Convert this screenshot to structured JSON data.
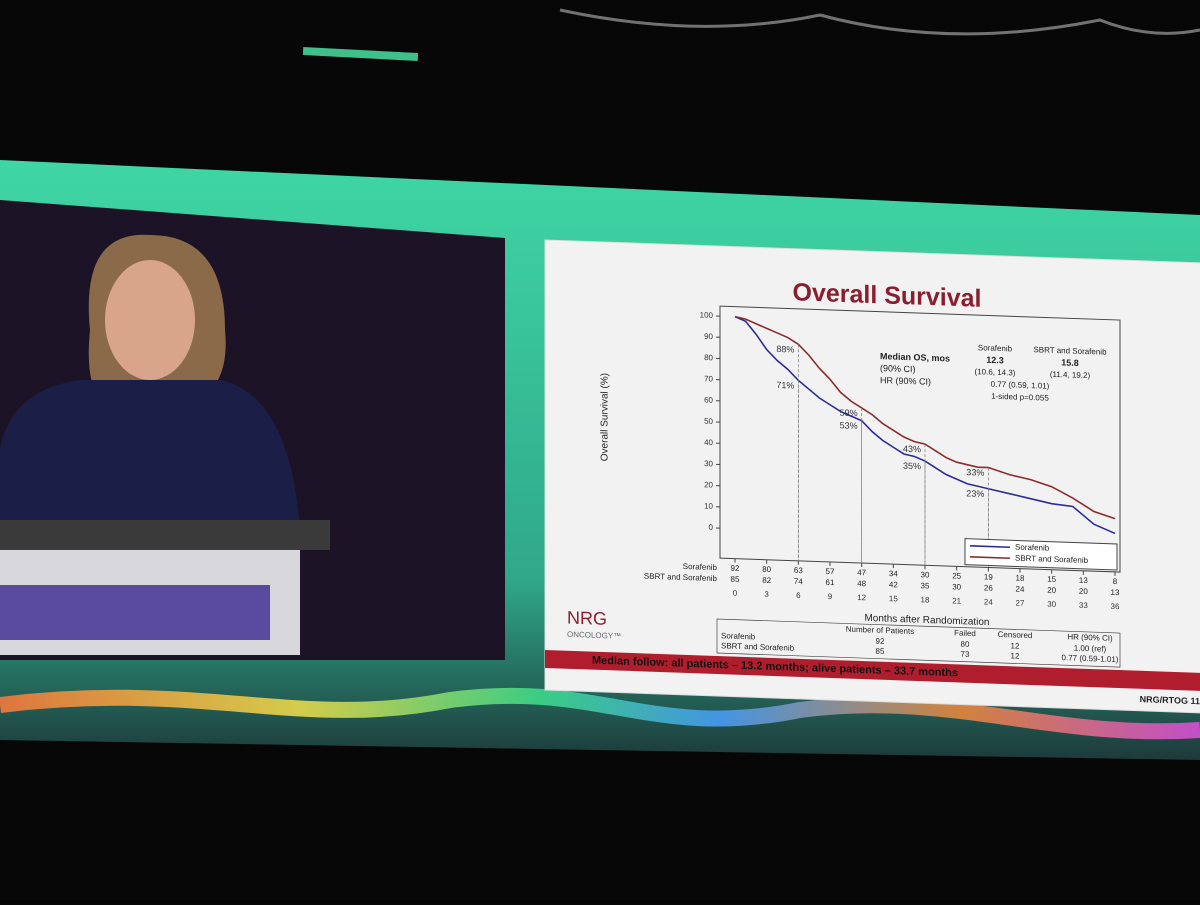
{
  "chart_data": {
    "type": "line",
    "title": "Overall Survival",
    "x_label": "Months after Randomization",
    "y_label": "Overall Survival (%)",
    "xlim": [
      0,
      36
    ],
    "xticks": [
      0,
      3,
      6,
      9,
      12,
      15,
      18,
      21,
      24,
      27,
      30,
      33,
      36
    ],
    "ylim": [
      0,
      100
    ],
    "yticks": [
      0,
      10,
      20,
      30,
      40,
      50,
      60,
      70,
      80,
      90,
      100
    ],
    "legend": "lower right",
    "series": [
      {
        "name": "Sorafenib",
        "color": "#2b2b96",
        "x": [
          0,
          1,
          2,
          3,
          4,
          5,
          6,
          7,
          8,
          9,
          10,
          11,
          12,
          13,
          14,
          15,
          16,
          17,
          18,
          19,
          20,
          21,
          22,
          23,
          24,
          26,
          28,
          30,
          32,
          34,
          36
        ],
        "values": [
          100,
          98,
          92,
          85,
          80,
          76,
          71,
          67,
          63,
          60,
          57,
          55,
          53,
          48,
          44,
          41,
          38,
          37,
          35,
          32,
          29,
          27,
          25,
          24,
          23,
          21,
          19,
          17,
          16,
          8,
          4
        ]
      },
      {
        "name": "SBRT and Sorafenib",
        "color": "#8a2b2b",
        "x": [
          0,
          1,
          2,
          3,
          4,
          5,
          6,
          7,
          8,
          9,
          10,
          11,
          12,
          13,
          14,
          15,
          16,
          17,
          18,
          19,
          20,
          21,
          22,
          23,
          24,
          26,
          28,
          30,
          32,
          34,
          36
        ],
        "values": [
          100,
          99,
          97,
          95,
          93,
          91,
          88,
          83,
          77,
          72,
          66,
          62,
          59,
          56,
          52,
          49,
          46,
          44,
          43,
          40,
          37,
          35,
          34,
          33,
          33,
          30,
          28,
          25,
          20,
          14,
          11
        ]
      }
    ],
    "annotations": [
      {
        "text": "88%",
        "x": 6,
        "y": 88
      },
      {
        "text": "71%",
        "x": 6,
        "y": 71
      },
      {
        "text": "59%",
        "x": 12,
        "y": 59
      },
      {
        "text": "53%",
        "x": 12,
        "y": 53
      },
      {
        "text": "43%",
        "x": 18,
        "y": 43
      },
      {
        "text": "35%",
        "x": 18,
        "y": 35
      },
      {
        "text": "33%",
        "x": 24,
        "y": 33
      },
      {
        "text": "23%",
        "x": 24,
        "y": 23
      }
    ],
    "stats": {
      "header": "Median OS, mos",
      "ci_label": "(90% CI)",
      "hr_label": "HR (90% CI)",
      "columns": [
        {
          "name": "Sorafenib",
          "median": 12.3,
          "ci": "(10.6, 14.3)"
        },
        {
          "name": "SBRT and Sorafenib",
          "median": 15.8,
          "ci": "(11.4, 19.2)"
        }
      ],
      "hr": "0.77 (0.59, 1.01)",
      "p": "1-sided p=0.055"
    },
    "at_risk": [
      {
        "label": "Sorafenib",
        "counts": [
          92,
          80,
          63,
          57,
          47,
          34,
          30,
          25,
          19,
          18,
          15,
          13,
          8
        ]
      },
      {
        "label": "SBRT and Sorafenib",
        "counts": [
          85,
          82,
          74,
          61,
          48,
          42,
          35,
          30,
          26,
          24,
          20,
          20,
          13
        ]
      }
    ],
    "summary_table": {
      "headers": [
        "Number of Patients",
        "Failed",
        "Censored",
        "HR (90% CI)"
      ],
      "rows": [
        [
          "Sorafenib",
          92,
          80,
          12,
          "1.00 (ref)"
        ],
        [
          "SBRT and Sorafenib",
          85,
          73,
          12,
          "0.77 (0.59-1.01)"
        ]
      ]
    },
    "logo": [
      "NRG",
      "ONCOLOGY™"
    ],
    "footer": "Median follow: all patients – 13.2 months; alive patients – 33.7 months",
    "footer_right": "NRG/RTOG 11"
  }
}
